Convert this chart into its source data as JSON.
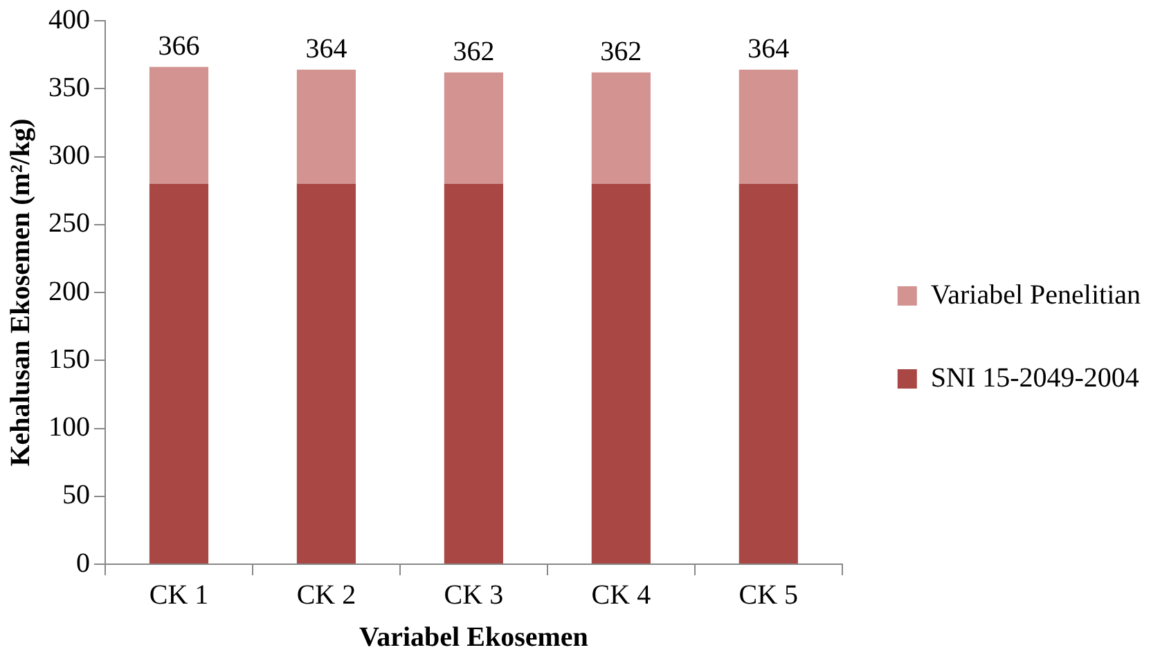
{
  "chart_data": {
    "type": "bar",
    "stacked": true,
    "categories": [
      "CK 1",
      "CK 2",
      "CK 3",
      "CK 4",
      "CK 5"
    ],
    "series": [
      {
        "name": "SNI 15-2049-2004",
        "color": "#a94744",
        "values": [
          280,
          280,
          280,
          280,
          280
        ]
      },
      {
        "name": "Variabel Penelitian",
        "color": "#d39391",
        "values": [
          86,
          84,
          82,
          82,
          84
        ]
      }
    ],
    "totals": [
      "366",
      "364",
      "362",
      "362",
      "364"
    ],
    "xlabel": "Variabel Ekosemen",
    "ylabel": "Kehalusan Ekosemen (m²/kg)",
    "ylim": [
      0,
      400
    ],
    "yticks": [
      0,
      50,
      100,
      150,
      200,
      250,
      300,
      350,
      400
    ],
    "grid": false,
    "legend": "right"
  }
}
